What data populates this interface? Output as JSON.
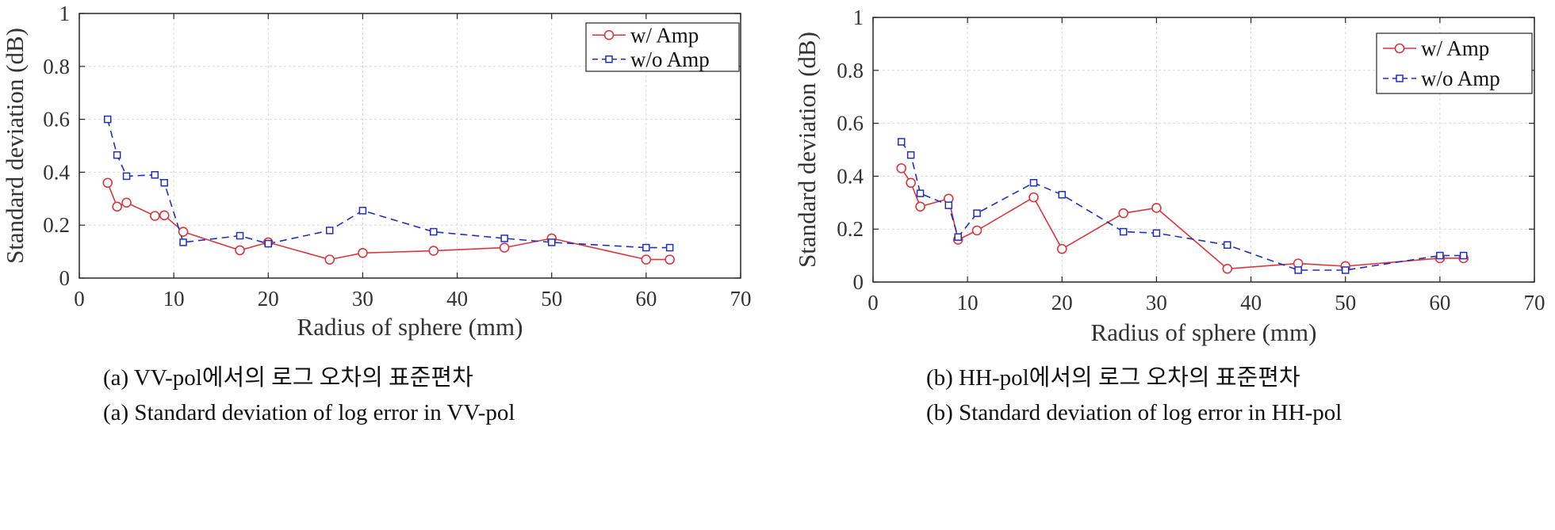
{
  "chart_data": [
    {
      "type": "line",
      "title": "",
      "xlabel": "Radius of sphere (mm)",
      "ylabel": "Standard deviation (dB)",
      "xlim": [
        0,
        70
      ],
      "ylim": [
        0,
        1
      ],
      "xticks": [
        "0",
        "10",
        "20",
        "30",
        "40",
        "50",
        "60",
        "70"
      ],
      "yticks": [
        "0",
        "0.2",
        "0.4",
        "0.6",
        "0.8",
        "1"
      ],
      "grid": true,
      "legend_position": "top-right",
      "series": [
        {
          "name": "w/ Amp",
          "color": "#d9363e",
          "marker": "circle",
          "line_style": "solid",
          "x": [
            3,
            4,
            5,
            8,
            9,
            11,
            17,
            20,
            26.5,
            30,
            37.5,
            45,
            50,
            60,
            62.5
          ],
          "y": [
            0.36,
            0.27,
            0.285,
            0.235,
            0.237,
            0.175,
            0.105,
            0.135,
            0.07,
            0.095,
            0.103,
            0.115,
            0.15,
            0.07,
            0.07
          ]
        },
        {
          "name": "w/o Amp",
          "color": "#1f2fbf",
          "marker": "square",
          "line_style": "dashed",
          "x": [
            3,
            4,
            5,
            8,
            9,
            11,
            17,
            20,
            26.5,
            30,
            37.5,
            45,
            50,
            60,
            62.5
          ],
          "y": [
            0.6,
            0.465,
            0.385,
            0.39,
            0.36,
            0.135,
            0.16,
            0.13,
            0.18,
            0.255,
            0.175,
            0.15,
            0.135,
            0.115,
            0.115
          ]
        }
      ],
      "caption_ko": "(a) VV-pol에서의 로그 오차의 표준편차",
      "caption_en": "(a) Standard deviation of log error in VV-pol"
    },
    {
      "type": "line",
      "title": "",
      "xlabel": "Radius of sphere (mm)",
      "ylabel": "Standard deviation (dB)",
      "xlim": [
        0,
        70
      ],
      "ylim": [
        0,
        1
      ],
      "xticks": [
        "0",
        "10",
        "20",
        "30",
        "40",
        "50",
        "60",
        "70"
      ],
      "yticks": [
        "0",
        "0.2",
        "0.4",
        "0.6",
        "0.8",
        "1"
      ],
      "grid": true,
      "legend_position": "top-right",
      "series": [
        {
          "name": "w/ Amp",
          "color": "#d9363e",
          "marker": "circle",
          "line_style": "solid",
          "x": [
            3,
            4,
            5,
            8,
            9,
            11,
            17,
            20,
            26.5,
            30,
            37.5,
            45,
            50,
            60,
            62.5
          ],
          "y": [
            0.43,
            0.375,
            0.285,
            0.315,
            0.16,
            0.195,
            0.32,
            0.125,
            0.26,
            0.28,
            0.05,
            0.07,
            0.06,
            0.09,
            0.09
          ]
        },
        {
          "name": "w/o Amp",
          "color": "#1f2fbf",
          "marker": "square",
          "line_style": "dashed",
          "x": [
            3,
            4,
            5,
            8,
            9,
            11,
            17,
            20,
            26.5,
            30,
            37.5,
            45,
            50,
            60,
            62.5
          ],
          "y": [
            0.53,
            0.48,
            0.335,
            0.29,
            0.17,
            0.26,
            0.375,
            0.33,
            0.19,
            0.185,
            0.14,
            0.045,
            0.045,
            0.1,
            0.1
          ]
        }
      ],
      "caption_ko": "(b) HH-pol에서의 로그 오차의 표준편차",
      "caption_en": "(b) Standard deviation of log error in HH-pol"
    }
  ]
}
